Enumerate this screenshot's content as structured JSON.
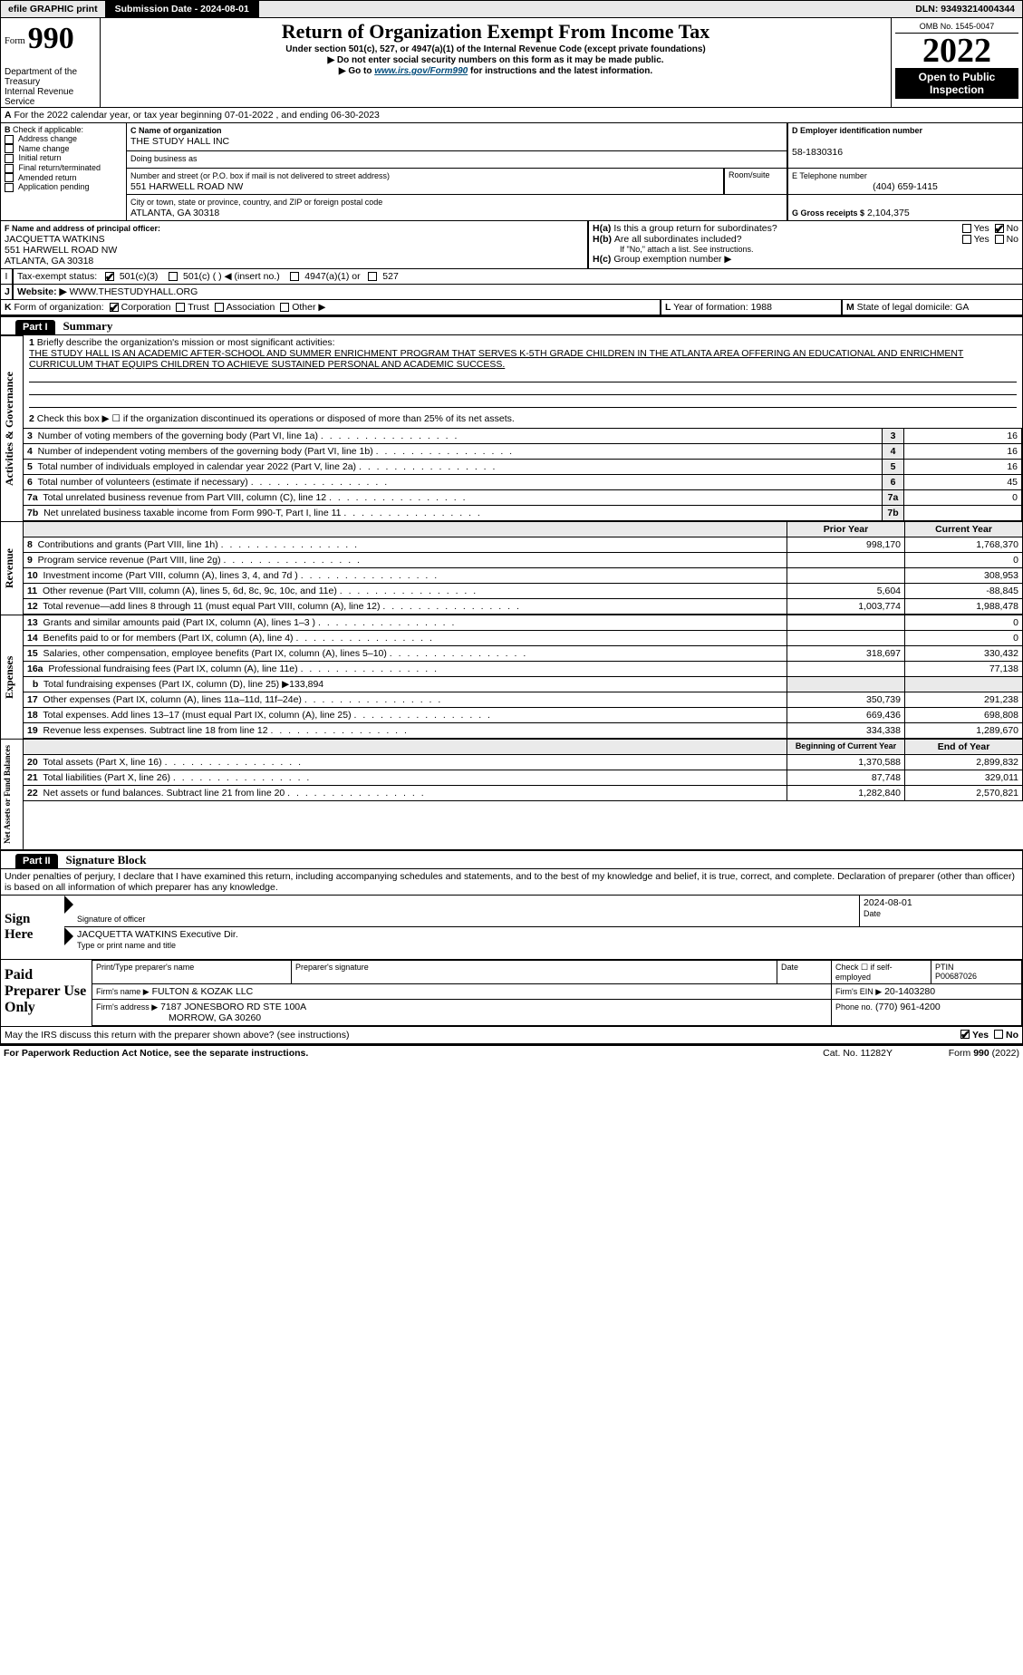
{
  "topbar": {
    "efile": "efile GRAPHIC print",
    "sub_label": "Submission Date - 2024-08-01",
    "dln": "DLN: 93493214004344"
  },
  "header": {
    "form_prefix": "Form",
    "form_num": "990",
    "title": "Return of Organization Exempt From Income Tax",
    "sub1": "Under section 501(c), 527, or 4947(a)(1) of the Internal Revenue Code (except private foundations)",
    "sub2": "▶ Do not enter social security numbers on this form as it may be made public.",
    "sub3_pre": "▶ Go to ",
    "sub3_link": "www.irs.gov/Form990",
    "sub3_post": " for instructions and the latest information.",
    "omb": "OMB No. 1545-0047",
    "year": "2022",
    "open": "Open to Public Inspection",
    "dept": "Department of the Treasury",
    "irs": "Internal Revenue Service"
  },
  "sectionA": {
    "period": "For the 2022 calendar year, or tax year beginning 07-01-2022     , and ending 06-30-2023",
    "check_label": "Check if applicable:",
    "checks": [
      "Address change",
      "Name change",
      "Initial return",
      "Final return/terminated",
      "Amended return",
      "Application pending"
    ],
    "c_label": "C Name of organization",
    "org": "THE STUDY HALL INC",
    "dba_label": "Doing business as",
    "street_label": "Number and street (or P.O. box if mail is not delivered to street address)",
    "room_label": "Room/suite",
    "street": "551 HARWELL ROAD NW",
    "city_label": "City or town, state or province, country, and ZIP or foreign postal code",
    "city": "ATLANTA, GA  30318",
    "ein_label": "D Employer identification number",
    "ein": "58-1830316",
    "phone_label": "E Telephone number",
    "phone": "(404) 659-1415",
    "gross_label": "G Gross receipts $",
    "gross": "2,104,375",
    "f_label": "F  Name and address of principal officer:",
    "officer_name": "JACQUETTA WATKINS",
    "officer_addr1": "551 HARWELL ROAD NW",
    "officer_addr2": "ATLANTA, GA  30318",
    "ha": "Is this a group return for subordinates?",
    "hb": "Are all subordinates included?",
    "hb_note": "If \"No,\" attach a list. See instructions.",
    "hc": "Group exemption number ▶",
    "tax_status_label": "Tax-exempt status:",
    "status_opts": [
      "501(c)(3)",
      "501(c) (  ) ◀ (insert no.)",
      "4947(a)(1) or",
      "527"
    ],
    "website_label": "Website: ▶",
    "website": "WWW.THESTUDYHALL.ORG",
    "k_label": "Form of organization:",
    "k_opts": [
      "Corporation",
      "Trust",
      "Association",
      "Other ▶"
    ],
    "l_label": "Year of formation:",
    "l_val": "1988",
    "m_label": "State of legal domicile:",
    "m_val": "GA"
  },
  "part1": {
    "bar": "Part I",
    "title": "Summary",
    "q1": "Briefly describe the organization's mission or most significant activities:",
    "mission": "THE STUDY HALL IS AN ACADEMIC AFTER-SCHOOL AND SUMMER ENRICHMENT PROGRAM THAT SERVES K-5TH GRADE CHILDREN IN THE ATLANTA AREA OFFERING AN EDUCATIONAL AND ENRICHMENT CURRICULUM THAT EQUIPS CHILDREN TO ACHIEVE SUSTAINED PERSONAL AND ACADEMIC SUCCESS.",
    "q2": "Check this box ▶ ☐  if the organization discontinued its operations or disposed of more than 25% of its net assets.",
    "gov_lines": [
      {
        "n": "3",
        "t": "Number of voting members of the governing body (Part VI, line 1a)",
        "v": "16"
      },
      {
        "n": "4",
        "t": "Number of independent voting members of the governing body (Part VI, line 1b)",
        "v": "16"
      },
      {
        "n": "5",
        "t": "Total number of individuals employed in calendar year 2022 (Part V, line 2a)",
        "v": "16"
      },
      {
        "n": "6",
        "t": "Total number of volunteers (estimate if necessary)",
        "v": "45"
      },
      {
        "n": "7a",
        "t": "Total unrelated business revenue from Part VIII, column (C), line 12",
        "v": "0"
      },
      {
        "n": "7b",
        "t": "Net unrelated business taxable income from Form 990-T, Part I, line 11",
        "v": ""
      }
    ],
    "col_prior": "Prior Year",
    "col_curr": "Current Year",
    "rev_lines": [
      {
        "n": "8",
        "t": "Contributions and grants (Part VIII, line 1h)",
        "p": "998,170",
        "c": "1,768,370"
      },
      {
        "n": "9",
        "t": "Program service revenue (Part VIII, line 2g)",
        "p": "",
        "c": "0"
      },
      {
        "n": "10",
        "t": "Investment income (Part VIII, column (A), lines 3, 4, and 7d )",
        "p": "",
        "c": "308,953"
      },
      {
        "n": "11",
        "t": "Other revenue (Part VIII, column (A), lines 5, 6d, 8c, 9c, 10c, and 11e)",
        "p": "5,604",
        "c": "-88,845"
      },
      {
        "n": "12",
        "t": "Total revenue—add lines 8 through 11 (must equal Part VIII, column (A), line 12)",
        "p": "1,003,774",
        "c": "1,988,478"
      }
    ],
    "exp_lines": [
      {
        "n": "13",
        "t": "Grants and similar amounts paid (Part IX, column (A), lines 1–3 )",
        "p": "",
        "c": "0"
      },
      {
        "n": "14",
        "t": "Benefits paid to or for members (Part IX, column (A), line 4)",
        "p": "",
        "c": "0"
      },
      {
        "n": "15",
        "t": "Salaries, other compensation, employee benefits (Part IX, column (A), lines 5–10)",
        "p": "318,697",
        "c": "330,432"
      },
      {
        "n": "16a",
        "t": "Professional fundraising fees (Part IX, column (A), line 11e)",
        "p": "",
        "c": "77,138"
      },
      {
        "n": "b",
        "t": "Total fundraising expenses (Part IX, column (D), line 25) ▶133,894",
        "p": "—",
        "c": "—"
      },
      {
        "n": "17",
        "t": "Other expenses (Part IX, column (A), lines 11a–11d, 11f–24e)",
        "p": "350,739",
        "c": "291,238"
      },
      {
        "n": "18",
        "t": "Total expenses. Add lines 13–17 (must equal Part IX, column (A), line 25)",
        "p": "669,436",
        "c": "698,808"
      },
      {
        "n": "19",
        "t": "Revenue less expenses. Subtract line 18 from line 12",
        "p": "334,338",
        "c": "1,289,670"
      }
    ],
    "col_begin": "Beginning of Current Year",
    "col_end": "End of Year",
    "net_lines": [
      {
        "n": "20",
        "t": "Total assets (Part X, line 16)",
        "p": "1,370,588",
        "c": "2,899,832"
      },
      {
        "n": "21",
        "t": "Total liabilities (Part X, line 26)",
        "p": "87,748",
        "c": "329,011"
      },
      {
        "n": "22",
        "t": "Net assets or fund balances. Subtract line 21 from line 20",
        "p": "1,282,840",
        "c": "2,570,821"
      }
    ],
    "tab_gov": "Activities & Governance",
    "tab_rev": "Revenue",
    "tab_exp": "Expenses",
    "tab_net": "Net Assets or Fund Balances"
  },
  "part2": {
    "bar": "Part II",
    "title": "Signature Block",
    "decl": "Under penalties of perjury, I declare that I have examined this return, including accompanying schedules and statements, and to the best of my knowledge and belief, it is true, correct, and complete. Declaration of preparer (other than officer) is based on all information of which preparer has any knowledge.",
    "sign_here": "Sign Here",
    "sig_officer": "Signature of officer",
    "sig_date": "2024-08-01",
    "date_label": "Date",
    "officer_typed": "JACQUETTA WATKINS  Executive Dir.",
    "type_name": "Type or print name and title",
    "paid": "Paid Preparer Use Only",
    "prep_name_label": "Print/Type preparer's name",
    "prep_sig_label": "Preparer's signature",
    "check_self": "Check ☐ if self-employed",
    "ptin_label": "PTIN",
    "ptin": "P00687026",
    "firm_name_label": "Firm's name    ▶",
    "firm_name": "FULTON & KOZAK LLC",
    "firm_ein_label": "Firm's EIN ▶",
    "firm_ein": "20-1403280",
    "firm_addr_label": "Firm's address ▶",
    "firm_addr1": "7187 JONESBORO RD STE 100A",
    "firm_addr2": "MORROW, GA  30260",
    "firm_phone_label": "Phone no.",
    "firm_phone": "(770) 961-4200",
    "discuss": "May the IRS discuss this return with the preparer shown above? (see instructions)",
    "yes": "Yes",
    "no": "No"
  },
  "footer": {
    "pra": "For Paperwork Reduction Act Notice, see the separate instructions.",
    "cat": "Cat. No. 11282Y",
    "form": "Form 990 (2022)"
  }
}
